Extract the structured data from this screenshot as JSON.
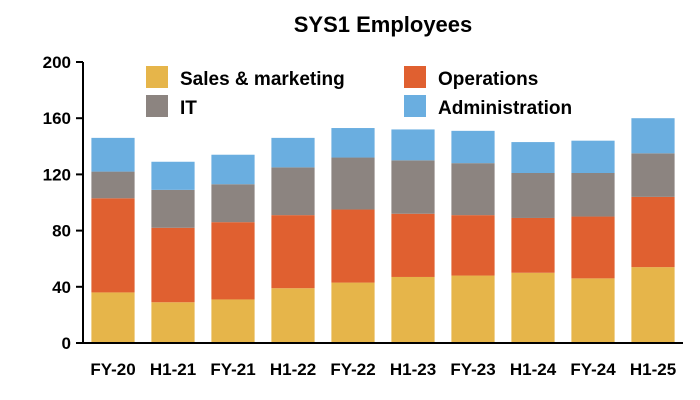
{
  "chart_data": {
    "type": "bar",
    "stacked": true,
    "title": "SYS1 Employees",
    "xlabel": "",
    "ylabel": "",
    "ylim": [
      0,
      200
    ],
    "yticks": [
      "0",
      "40",
      "80",
      "120",
      "160",
      "200"
    ],
    "categories": [
      "FY-20",
      "H1-21",
      "FY-21",
      "H1-22",
      "FY-22",
      "H1-23",
      "FY-23",
      "H1-24",
      "FY-24",
      "H1-25"
    ],
    "grid": false,
    "legend_position": "top",
    "series": [
      {
        "name": "Sales & marketing",
        "color": "#e6b54a",
        "values": [
          36,
          29,
          31,
          39,
          43,
          47,
          48,
          50,
          46,
          54
        ]
      },
      {
        "name": "Operations",
        "color": "#e06030",
        "values": [
          67,
          53,
          55,
          52,
          52,
          45,
          43,
          39,
          44,
          50
        ]
      },
      {
        "name": "IT",
        "color": "#8c8480",
        "values": [
          19,
          27,
          27,
          34,
          37,
          38,
          37,
          32,
          31,
          31
        ]
      },
      {
        "name": "Administration",
        "color": "#6aaee0",
        "values": [
          24,
          20,
          21,
          21,
          21,
          22,
          23,
          22,
          23,
          25
        ]
      }
    ]
  }
}
